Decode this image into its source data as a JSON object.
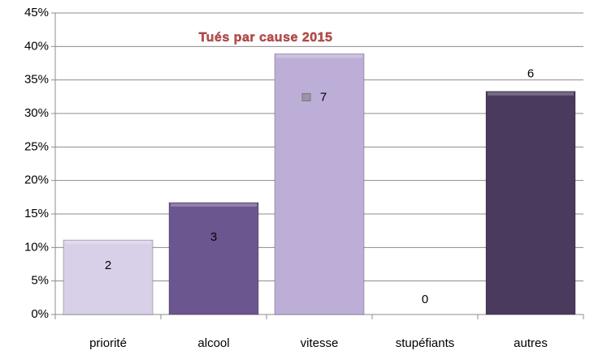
{
  "chart_data": {
    "type": "bar",
    "title": "Tués  par cause 2015",
    "categories": [
      "priorité",
      "alcool",
      "vitesse",
      "stupéfiants",
      "autres"
    ],
    "values": [
      11.1,
      16.7,
      38.9,
      0,
      33.3
    ],
    "counts": [
      2,
      3,
      7,
      0,
      6
    ],
    "colors": [
      "#d8cfe8",
      "#6b5690",
      "#bdaed7",
      "#bdaed7",
      "#4a3a5e"
    ],
    "ylim": [
      0,
      45
    ],
    "yticks": [
      {
        "value": 0,
        "label": "0%"
      },
      {
        "value": 5,
        "label": "5%"
      },
      {
        "value": 10,
        "label": "10%"
      },
      {
        "value": 15,
        "label": "15%"
      },
      {
        "value": 20,
        "label": "20%"
      },
      {
        "value": 25,
        "label": "25%"
      },
      {
        "value": 30,
        "label": "30%"
      },
      {
        "value": 35,
        "label": "35%"
      },
      {
        "value": 40,
        "label": "40%"
      },
      {
        "value": 45,
        "label": "45%"
      }
    ],
    "grid": true
  }
}
